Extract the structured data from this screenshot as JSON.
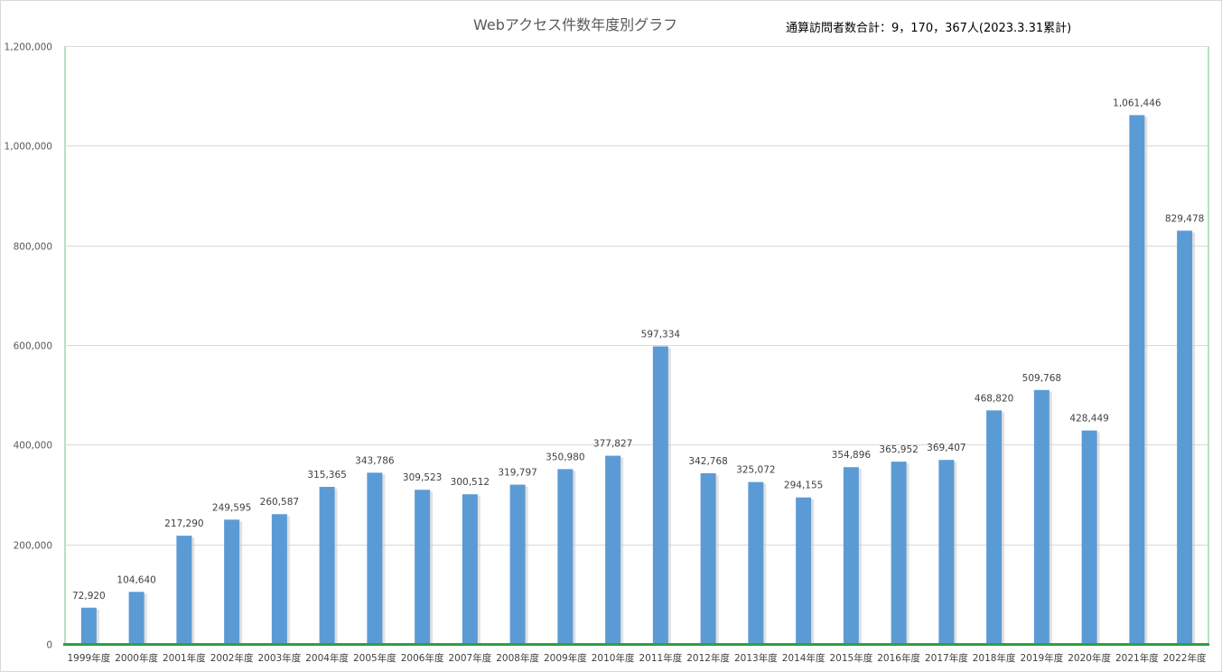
{
  "chart_data": {
    "type": "bar",
    "title": "Webアクセス件数年度別グラフ",
    "annotation": "通算訪問者数合計：9，170，367人(2023.3.31累計)",
    "categories": [
      "1999年度",
      "2000年度",
      "2001年度",
      "2002年度",
      "2003年度",
      "2004年度",
      "2005年度",
      "2006年度",
      "2007年度",
      "2008年度",
      "2009年度",
      "2010年度",
      "2011年度",
      "2012年度",
      "2013年度",
      "2014年度",
      "2015年度",
      "2016年度",
      "2017年度",
      "2018年度",
      "2019年度",
      "2020年度",
      "2021年度",
      "2022年度"
    ],
    "values": [
      72920,
      104640,
      217290,
      249595,
      260587,
      315365,
      343786,
      309523,
      300512,
      319797,
      350980,
      377827,
      597334,
      342768,
      325072,
      294155,
      354896,
      365952,
      369407,
      468820,
      509768,
      428449,
      1061446,
      829478
    ],
    "value_labels": [
      "72,920",
      "104,640",
      "217,290",
      "249,595",
      "260,587",
      "315,365",
      "343,786",
      "309,523",
      "300,512",
      "319,797",
      "350,980",
      "377,827",
      "597,334",
      "342,768",
      "325,072",
      "294,155",
      "354,896",
      "365,952",
      "369,407",
      "468,820",
      "509,768",
      "428,449",
      "1,061,446",
      "829,478"
    ],
    "ylim": [
      0,
      1200000
    ],
    "yticks": [
      0,
      200000,
      400000,
      600000,
      800000,
      1000000,
      1200000
    ],
    "ytick_labels": [
      "0",
      "200,000",
      "400,000",
      "600,000",
      "800,000",
      "1,000,000",
      "1,200,000"
    ],
    "xlabel": "",
    "ylabel": "",
    "grid": true,
    "bar_color": "#5b9bd5",
    "plot_border_color": "#70c08a",
    "baseline_color": "#2ea043"
  }
}
